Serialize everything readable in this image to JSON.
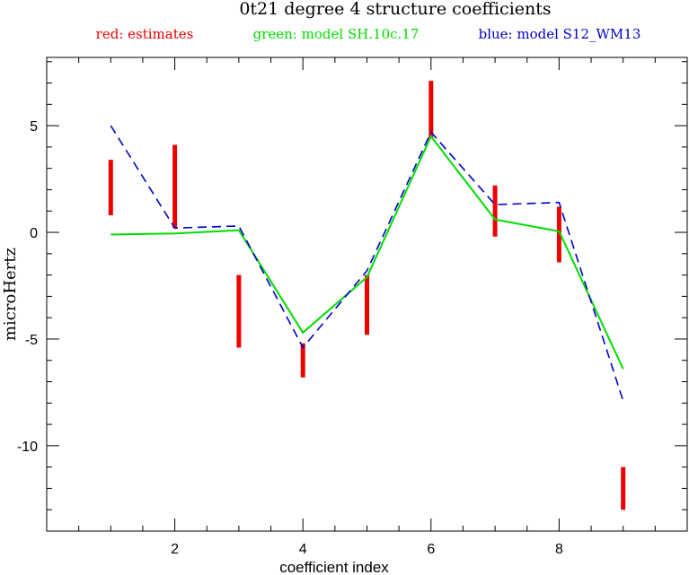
{
  "chart_data": {
    "type": "line",
    "title": "0t21 degree 4 structure coefficients",
    "xlabel": "coefficient index",
    "ylabel": "microHertz",
    "xlim": [
      0,
      10
    ],
    "ylim": [
      -14,
      8.2
    ],
    "x_ticks": [
      2,
      4,
      6,
      8
    ],
    "y_ticks": [
      -10,
      -5,
      0,
      5
    ],
    "legend": [
      {
        "text": "red: estimates",
        "color": "#ee0000"
      },
      {
        "text": "green: model SH.10c.17",
        "color": "#00dd00"
      },
      {
        "text": "blue: model S12_WM13",
        "color": "#0000cc"
      }
    ],
    "estimates": {
      "color": "#ee0000",
      "x": [
        1,
        2,
        3,
        4,
        5,
        6,
        7,
        8,
        9
      ],
      "low": [
        0.8,
        0.2,
        -5.4,
        -6.8,
        -4.8,
        4.4,
        -0.2,
        -1.4,
        -13.0
      ],
      "high": [
        3.4,
        4.1,
        -2.0,
        -5.2,
        -2.0,
        7.1,
        2.2,
        1.2,
        -11.0
      ]
    },
    "series": [
      {
        "name": "model SH.10c.17",
        "color": "#00dd00",
        "style": "solid",
        "x": [
          1,
          2,
          3,
          4,
          5,
          6,
          7,
          8,
          9
        ],
        "values": [
          -0.1,
          -0.05,
          0.1,
          -4.7,
          -2.1,
          4.5,
          0.6,
          0.05,
          -6.4
        ]
      },
      {
        "name": "model S12_WM13",
        "color": "#0000cc",
        "style": "dashed",
        "x": [
          1,
          2,
          3,
          4,
          5,
          6,
          7,
          8,
          9
        ],
        "values": [
          5.0,
          0.2,
          0.3,
          -5.4,
          -1.8,
          4.7,
          1.3,
          1.4,
          -7.9
        ]
      }
    ]
  }
}
